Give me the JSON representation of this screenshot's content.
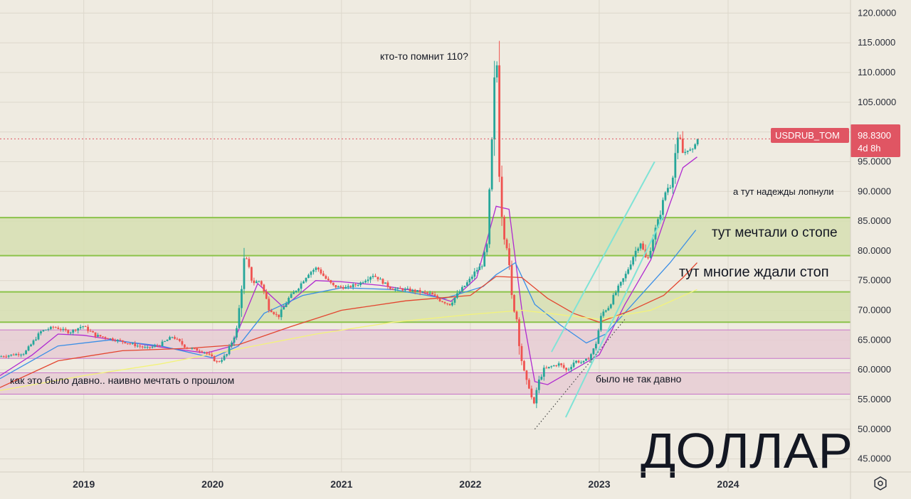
{
  "symbol": {
    "ticker": "USDRUB_TOM",
    "last_price": "98.8300",
    "countdown": "4d 8h",
    "badge_color": "#e05563"
  },
  "settings_icon": "gear-icon",
  "colors": {
    "background": "#efebe1",
    "grid": "#ddd8cc",
    "candle_up": "#26a69a",
    "candle_down": "#ef5350",
    "zone_green": "#d6dfb1",
    "zone_green_border": "#8bc34a",
    "zone_pink": "#e6ccd3",
    "zone_pink_border": "#c774c9",
    "ma_short": "#b02ad0",
    "ma_medium": "#3a8ee6",
    "ma_long": "#e3452f",
    "ma_longest": "#f3f37a",
    "channel": "#7fe3d6"
  },
  "annotations": {
    "peak": "кто-то помнит 110?",
    "hopes": "а тут надежды лопнули",
    "dream_stop": "тут мечтали о стопе",
    "waited_stop": "тут многие ждали стоп",
    "long_ago": "как это было давно.. наивно мечтать о прошлом",
    "not_long_ago": "было не так давно",
    "big_title": "ДОЛЛАР"
  },
  "chart_data": {
    "type": "candlestick",
    "symbol": "USDRUB_TOM",
    "timeframe": "weekly",
    "x_labels": [
      "2019",
      "2020",
      "2021",
      "2022",
      "2023",
      "2024"
    ],
    "y_ticks": [
      "45.0000",
      "50.0000",
      "55.0000",
      "60.0000",
      "65.0000",
      "70.0000",
      "75.0000",
      "80.0000",
      "85.0000",
      "90.0000",
      "95.0000",
      "100.0000",
      "105.0000",
      "110.0000",
      "115.0000",
      "120.0000"
    ],
    "ylim": [
      42.8,
      122.2
    ],
    "xlim": [
      2018.35,
      2024.95
    ],
    "last_value": 98.83,
    "grid": true,
    "zones": [
      {
        "kind": "green",
        "y_from": 79.2,
        "y_to": 85.6
      },
      {
        "kind": "green",
        "y_from": 68.0,
        "y_to": 73.1
      },
      {
        "kind": "pink",
        "y_from": 61.9,
        "y_to": 66.7
      },
      {
        "kind": "pink",
        "y_from": 55.9,
        "y_to": 59.5
      }
    ],
    "price_path": [
      [
        2018.35,
        62.2
      ],
      [
        2018.55,
        62.8
      ],
      [
        2018.62,
        64.8
      ],
      [
        2018.68,
        66.5
      ],
      [
        2018.78,
        67.2
      ],
      [
        2018.9,
        66.3
      ],
      [
        2019.0,
        67.4
      ],
      [
        2019.1,
        65.8
      ],
      [
        2019.3,
        64.8
      ],
      [
        2019.5,
        63.6
      ],
      [
        2019.6,
        64.2
      ],
      [
        2019.7,
        65.6
      ],
      [
        2019.8,
        63.8
      ],
      [
        2019.95,
        63.0
      ],
      [
        2020.05,
        61.2
      ],
      [
        2020.12,
        62.6
      ],
      [
        2020.2,
        67.0
      ],
      [
        2020.26,
        79.5
      ],
      [
        2020.32,
        74.6
      ],
      [
        2020.38,
        75.0
      ],
      [
        2020.45,
        70.2
      ],
      [
        2020.52,
        68.9
      ],
      [
        2020.6,
        72.0
      ],
      [
        2020.68,
        74.0
      ],
      [
        2020.75,
        76.2
      ],
      [
        2020.82,
        77.2
      ],
      [
        2020.88,
        75.5
      ],
      [
        2020.95,
        74.0
      ],
      [
        2021.05,
        73.8
      ],
      [
        2021.15,
        74.5
      ],
      [
        2021.25,
        76.0
      ],
      [
        2021.3,
        75.3
      ],
      [
        2021.4,
        73.6
      ],
      [
        2021.5,
        73.5
      ],
      [
        2021.6,
        73.2
      ],
      [
        2021.7,
        72.8
      ],
      [
        2021.78,
        71.6
      ],
      [
        2021.85,
        71.0
      ],
      [
        2021.92,
        73.0
      ],
      [
        2022.0,
        75.0
      ],
      [
        2022.05,
        76.6
      ],
      [
        2022.1,
        77.6
      ],
      [
        2022.14,
        81.0
      ],
      [
        2022.17,
        94.5
      ],
      [
        2022.19,
        104.0
      ],
      [
        2022.21,
        116.5
      ],
      [
        2022.23,
        97.0
      ],
      [
        2022.26,
        84.0
      ],
      [
        2022.3,
        80.0
      ],
      [
        2022.33,
        72.0
      ],
      [
        2022.37,
        68.5
      ],
      [
        2022.4,
        62.5
      ],
      [
        2022.44,
        58.0
      ],
      [
        2022.47,
        57.0
      ],
      [
        2022.5,
        53.5
      ],
      [
        2022.53,
        57.5
      ],
      [
        2022.58,
        60.0
      ],
      [
        2022.63,
        60.5
      ],
      [
        2022.7,
        61.0
      ],
      [
        2022.76,
        59.8
      ],
      [
        2022.82,
        61.5
      ],
      [
        2022.88,
        61.2
      ],
      [
        2022.93,
        62.0
      ],
      [
        2022.98,
        64.0
      ],
      [
        2023.03,
        69.5
      ],
      [
        2023.08,
        70.5
      ],
      [
        2023.15,
        73.5
      ],
      [
        2023.22,
        76.2
      ],
      [
        2023.28,
        79.5
      ],
      [
        2023.33,
        81.5
      ],
      [
        2023.38,
        78.0
      ],
      [
        2023.43,
        82.5
      ],
      [
        2023.48,
        86.0
      ],
      [
        2023.53,
        90.5
      ],
      [
        2023.57,
        91.0
      ],
      [
        2023.6,
        96.5
      ],
      [
        2023.63,
        99.6
      ],
      [
        2023.66,
        96.2
      ],
      [
        2023.7,
        97.3
      ],
      [
        2023.73,
        96.5
      ],
      [
        2023.76,
        98.83
      ]
    ],
    "moving_averages": [
      {
        "color": "#b02ad0",
        "points": [
          [
            2018.35,
            59.0
          ],
          [
            2018.6,
            62.5
          ],
          [
            2018.8,
            66.0
          ],
          [
            2019.0,
            65.8
          ],
          [
            2019.3,
            64.8
          ],
          [
            2019.6,
            63.8
          ],
          [
            2019.95,
            62.8
          ],
          [
            2020.15,
            64.0
          ],
          [
            2020.35,
            74.5
          ],
          [
            2020.55,
            70.5
          ],
          [
            2020.8,
            75.0
          ],
          [
            2021.0,
            74.8
          ],
          [
            2021.3,
            74.2
          ],
          [
            2021.6,
            73.2
          ],
          [
            2021.85,
            71.5
          ],
          [
            2022.05,
            75.5
          ],
          [
            2022.2,
            87.5
          ],
          [
            2022.3,
            87.0
          ],
          [
            2022.4,
            70.0
          ],
          [
            2022.5,
            58.0
          ],
          [
            2022.6,
            57.5
          ],
          [
            2022.8,
            60.0
          ],
          [
            2023.0,
            62.5
          ],
          [
            2023.2,
            71.0
          ],
          [
            2023.4,
            78.5
          ],
          [
            2023.55,
            88.0
          ],
          [
            2023.65,
            94.0
          ],
          [
            2023.76,
            95.8
          ]
        ]
      },
      {
        "color": "#3a8ee6",
        "points": [
          [
            2018.35,
            58.5
          ],
          [
            2018.8,
            64.0
          ],
          [
            2019.2,
            65.0
          ],
          [
            2019.6,
            64.0
          ],
          [
            2020.0,
            62.0
          ],
          [
            2020.2,
            64.0
          ],
          [
            2020.4,
            69.5
          ],
          [
            2020.7,
            72.5
          ],
          [
            2021.0,
            73.8
          ],
          [
            2021.4,
            73.5
          ],
          [
            2021.8,
            72.0
          ],
          [
            2022.1,
            74.0
          ],
          [
            2022.2,
            76.0
          ],
          [
            2022.35,
            78.0
          ],
          [
            2022.5,
            71.0
          ],
          [
            2022.7,
            67.5
          ],
          [
            2022.9,
            64.5
          ],
          [
            2023.05,
            66.0
          ],
          [
            2023.3,
            72.0
          ],
          [
            2023.55,
            78.0
          ],
          [
            2023.75,
            83.5
          ]
        ]
      },
      {
        "color": "#e3452f",
        "points": [
          [
            2018.35,
            57.0
          ],
          [
            2018.8,
            61.5
          ],
          [
            2019.3,
            63.2
          ],
          [
            2019.8,
            63.6
          ],
          [
            2020.2,
            64.2
          ],
          [
            2020.6,
            67.2
          ],
          [
            2021.0,
            70.0
          ],
          [
            2021.5,
            71.6
          ],
          [
            2022.0,
            72.5
          ],
          [
            2022.2,
            75.7
          ],
          [
            2022.4,
            75.5
          ],
          [
            2022.6,
            72.0
          ],
          [
            2022.8,
            69.5
          ],
          [
            2023.0,
            68.0
          ],
          [
            2023.25,
            70.0
          ],
          [
            2023.5,
            72.5
          ],
          [
            2023.65,
            75.5
          ],
          [
            2023.76,
            78.0
          ]
        ]
      },
      {
        "color": "#f3f37a",
        "points": [
          [
            2018.35,
            56.5
          ],
          [
            2019.0,
            59.0
          ],
          [
            2019.6,
            61.0
          ],
          [
            2020.2,
            63.5
          ],
          [
            2020.8,
            66.0
          ],
          [
            2021.4,
            68.0
          ],
          [
            2022.0,
            69.3
          ],
          [
            2022.4,
            70.0
          ],
          [
            2022.8,
            69.0
          ],
          [
            2023.0,
            68.5
          ],
          [
            2023.4,
            70.0
          ],
          [
            2023.76,
            73.5
          ]
        ]
      }
    ],
    "trend_lines": [
      {
        "style": "solid",
        "color": "#7fe3d6",
        "from": [
          2022.74,
          52.0
        ],
        "to": [
          2023.5,
          86.0
        ]
      },
      {
        "style": "solid",
        "color": "#7fe3d6",
        "from": [
          2022.63,
          63.0
        ],
        "to": [
          2023.43,
          95.0
        ]
      },
      {
        "style": "dotted",
        "color": "#444444",
        "from": [
          2022.5,
          50.0
        ],
        "to": [
          2023.2,
          68.5
        ]
      }
    ],
    "current_price_line": 98.83
  }
}
